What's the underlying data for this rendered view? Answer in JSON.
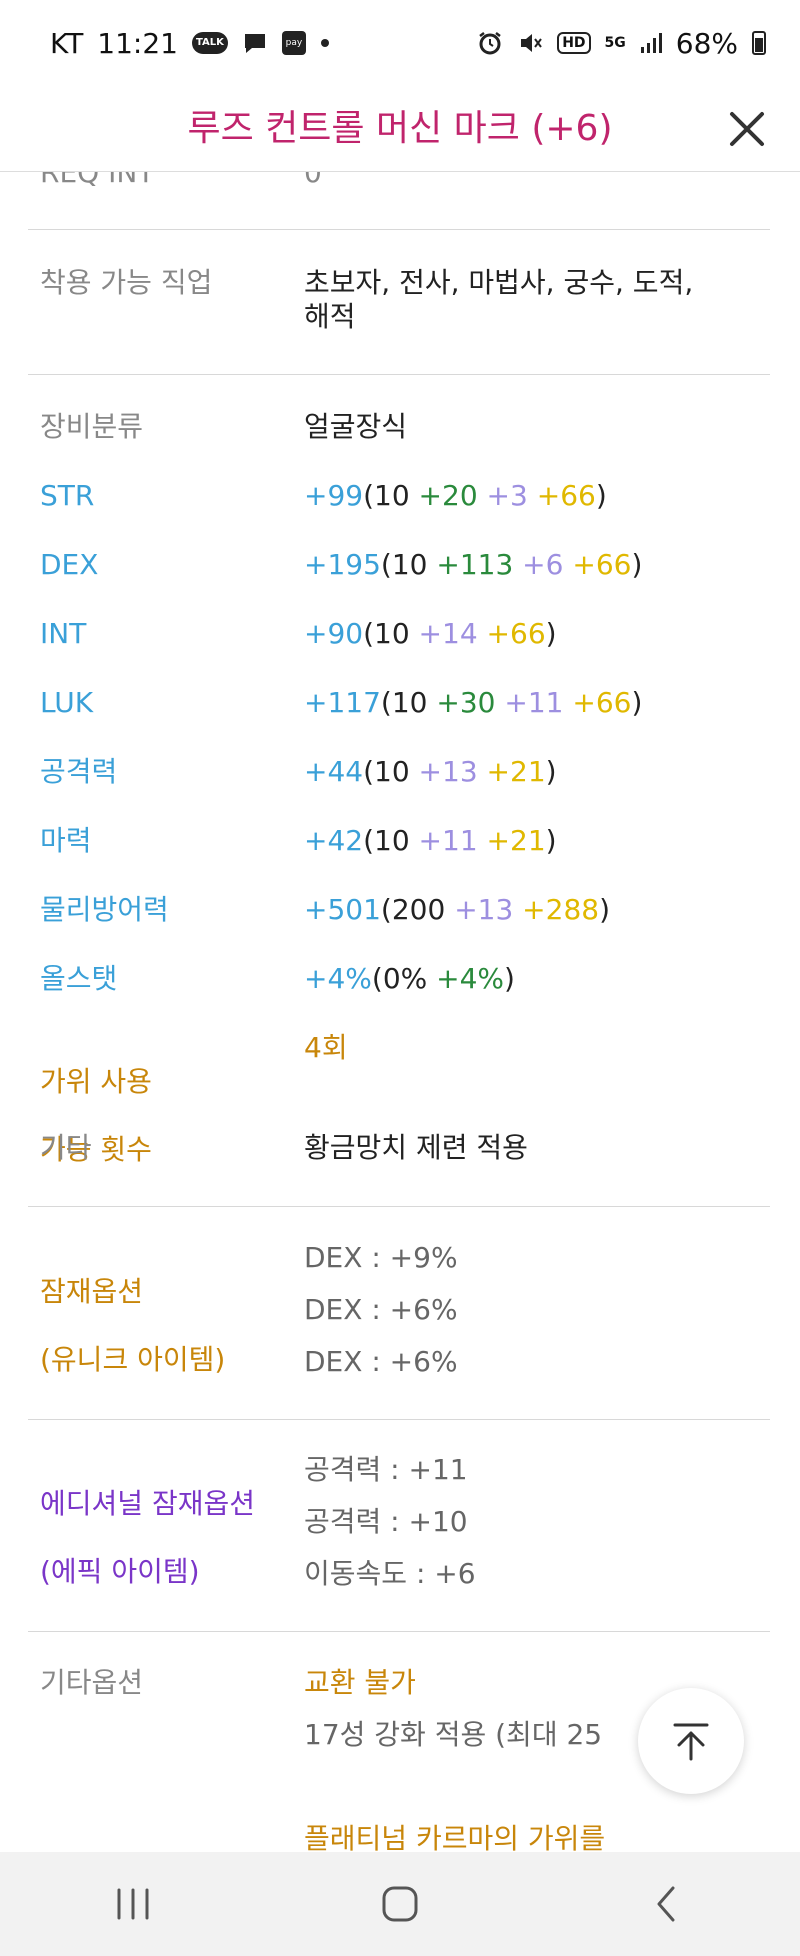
{
  "status_bar": {
    "carrier": "KT",
    "time": "11:21",
    "talk_label": "TALK",
    "pay_label": "pay",
    "hd_label": "HD",
    "network": "5G",
    "battery": "68%"
  },
  "header": {
    "title": "루즈 컨트롤 머신 마크 (+6)"
  },
  "rows": {
    "req_int": {
      "label": "REQ INT",
      "value": "0"
    },
    "jobs": {
      "label": "착용 가능 직업",
      "value_line1": "초보자, 전사, 마법사, 궁수, 도적,",
      "value_line2": "해적"
    },
    "category": {
      "label": "장비분류",
      "value": "얼굴장식"
    },
    "str": {
      "label": "STR",
      "total": "+99",
      "base": "(10 ",
      "add1": "+20",
      "add2": " +3",
      "add3": " +66",
      "close": ")"
    },
    "dex": {
      "label": "DEX",
      "total": "+195",
      "base": "(10 ",
      "add1": "+113",
      "add2": " +6",
      "add3": " +66",
      "close": ")"
    },
    "int": {
      "label": "INT",
      "total": "+90",
      "base": "(10 ",
      "add2": "+14",
      "add3": " +66",
      "close": ")"
    },
    "luk": {
      "label": "LUK",
      "total": "+117",
      "base": "(10 ",
      "add1": "+30",
      "add2": " +11",
      "add3": " +66",
      "close": ")"
    },
    "attack": {
      "label": "공격력",
      "total": "+44",
      "base": "(10 ",
      "add2": "+13",
      "add3": " +21",
      "close": ")"
    },
    "magic": {
      "label": "마력",
      "total": "+42",
      "base": "(10 ",
      "add2": "+11",
      "add3": " +21",
      "close": ")"
    },
    "defense": {
      "label": "물리방어력",
      "total": "+501",
      "base": "(200 ",
      "add2": "+13",
      "add3": " +288",
      "close": ")"
    },
    "allstat": {
      "label": "올스탯",
      "total": "+4%",
      "base": "(0% ",
      "add1": "+4%",
      "close": ")"
    },
    "scissors": {
      "label_line1": "가위 사용",
      "label_line2": "가능 횟수",
      "value": "4회"
    },
    "etc": {
      "label": "기타",
      "value": "황금망치 제련 적용"
    },
    "potential": {
      "label_line1": "잠재옵션",
      "label_line2": "(유니크 아이템)",
      "lines": [
        "DEX : +9%",
        "DEX : +6%",
        "DEX : +6%"
      ]
    },
    "additional": {
      "label_line1": "에디셔널 잠재옵션",
      "label_line2": "(에픽 아이템)",
      "lines": [
        "공격력 : +11",
        "공격력 : +10",
        "이동속도 : +6"
      ]
    },
    "other_options": {
      "label": "기타옵션",
      "line1": "교환 불가",
      "line2": "17성 강화 적용 (최대 25",
      "line3": "플래티넘 카르마의 가위를"
    }
  },
  "colors": {
    "title": "#c0246c",
    "stat_label": "#3aa0d8",
    "green": "#2a8a3c",
    "lavender": "#9d8fe0",
    "yellow": "#e0b800",
    "gold": "#c8860a",
    "purple": "#7a35c8"
  },
  "icons": {
    "close": "close-icon",
    "scroll_top": "arrow-up-icon",
    "nav_recent": "recent-apps-icon",
    "nav_home": "home-icon",
    "nav_back": "back-icon"
  }
}
